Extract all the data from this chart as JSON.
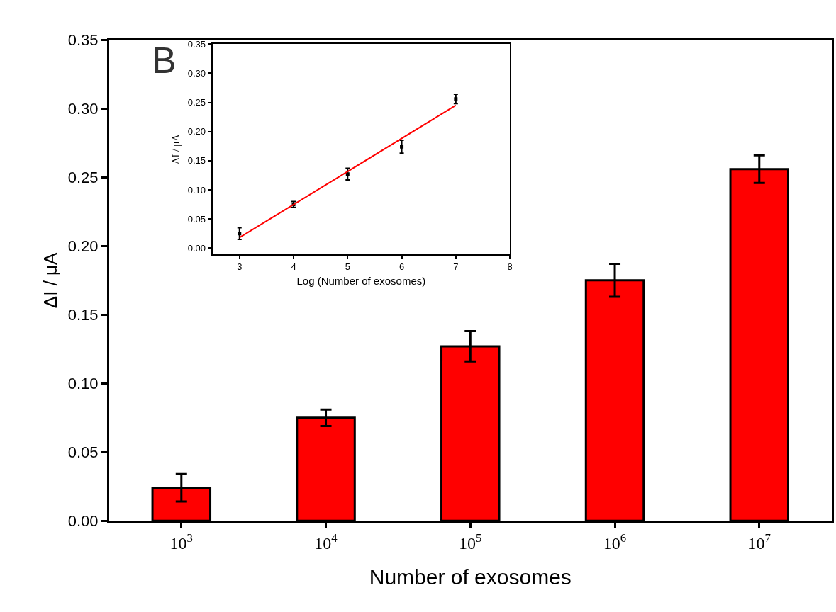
{
  "chart_data": [
    {
      "type": "bar",
      "xlabel": "Number of exosomes",
      "ylabel": "ΔI / μA",
      "categories": [
        "10$^{3}$",
        "10$^{4}$",
        "10$^{5}$",
        "10$^{6}$",
        "10$^{7}$"
      ],
      "series": [
        {
          "color": "#ff0000",
          "values": [
            0.024,
            0.075,
            0.127,
            0.175,
            0.256
          ],
          "errors": [
            0.01,
            0.006,
            0.011,
            0.012,
            0.01
          ]
        }
      ],
      "ylim": [
        0,
        0.35
      ],
      "yticks": [
        {
          "value": 0,
          "label": "0.00"
        },
        {
          "value": 0.05,
          "label": "0.05"
        },
        {
          "value": 0.1,
          "label": "0.10"
        },
        {
          "value": 0.15,
          "label": "0.15"
        },
        {
          "value": 0.2,
          "label": "0.20"
        },
        {
          "value": 0.25,
          "label": "0.25"
        },
        {
          "value": 0.3,
          "label": "0.30"
        },
        {
          "value": 0.35,
          "label": "0.35"
        }
      ]
    },
    {
      "type": "scatter",
      "xlabel": "Log (Number of exosomes)",
      "ylabel": "ΔI / μA",
      "annotations": [
        "B"
      ],
      "x": [
        3,
        4,
        5,
        6,
        7
      ],
      "series": [
        {
          "color": "#000000",
          "marker": "square",
          "values": [
            0.025,
            0.075,
            0.127,
            0.174,
            0.256
          ],
          "errors": [
            0.01,
            0.005,
            0.01,
            0.011,
            0.008
          ]
        },
        {
          "type": "line",
          "color": "#ff0000",
          "x": [
            3,
            7
          ],
          "values": [
            0.018,
            0.245
          ]
        }
      ],
      "xlim": [
        2.5,
        8
      ],
      "xticks": [
        3,
        4,
        5,
        6,
        7,
        8
      ],
      "ylim": [
        -0.01,
        0.35
      ],
      "yticks": [
        {
          "value": 0,
          "label": "0.00"
        },
        {
          "value": 0.05,
          "label": "0.05"
        },
        {
          "value": 0.1,
          "label": "0.10"
        },
        {
          "value": 0.15,
          "label": "0.15"
        },
        {
          "value": 0.2,
          "label": "0.20"
        },
        {
          "value": 0.25,
          "label": "0.25"
        },
        {
          "value": 0.3,
          "label": "0.30"
        },
        {
          "value": 0.35,
          "label": "0.35"
        }
      ]
    }
  ]
}
